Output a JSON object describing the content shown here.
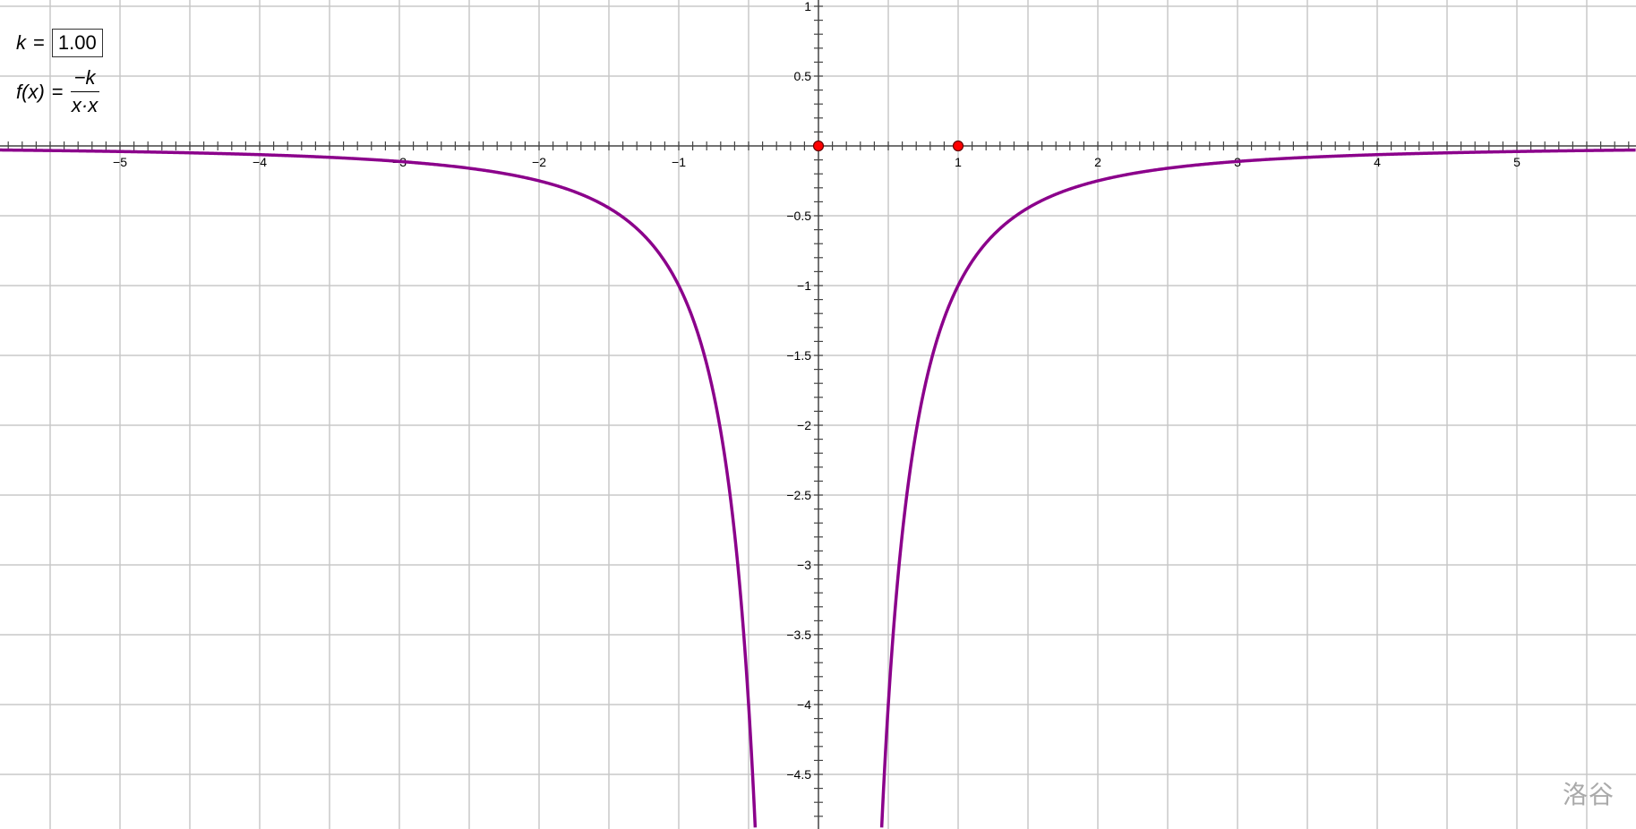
{
  "chart_data": {
    "type": "line",
    "function": "f(x) = -k / (x·x)",
    "parameter": {
      "name": "k",
      "value": "1.00"
    },
    "xlim": [
      -5.86,
      5.85
    ],
    "ylim": [
      -4.89,
      1.045
    ],
    "x_tick_labels": [
      "−5",
      "−4",
      "−3",
      "−2",
      "−1",
      "1",
      "2",
      "3",
      "4",
      "5"
    ],
    "x_tick_values": [
      -5,
      -4,
      -3,
      -2,
      -1,
      1,
      2,
      3,
      4,
      5
    ],
    "y_tick_labels": [
      "1",
      "0.5",
      "−0.5",
      "−1",
      "−1.5",
      "−2",
      "−2.5",
      "−3",
      "−3.5",
      "−4",
      "−4.5"
    ],
    "y_tick_values": [
      1,
      0.5,
      -0.5,
      -1,
      -1.5,
      -2,
      -2.5,
      -3,
      -3.5,
      -4,
      -4.5
    ],
    "grid": true,
    "grid_step": 0.5,
    "minor_tick_step": 0.1,
    "points": [
      {
        "x": 0,
        "y": 0
      },
      {
        "x": 1,
        "y": 0
      }
    ],
    "curve_color": "#8B008B",
    "point_color": "#FF0000"
  },
  "panel": {
    "k_label": "k",
    "equals": "=",
    "k_value": "1.00",
    "f_label": "f",
    "f_arg": "(x)",
    "numerator": "−k",
    "denominator": "x·x"
  },
  "watermark": "洛谷"
}
